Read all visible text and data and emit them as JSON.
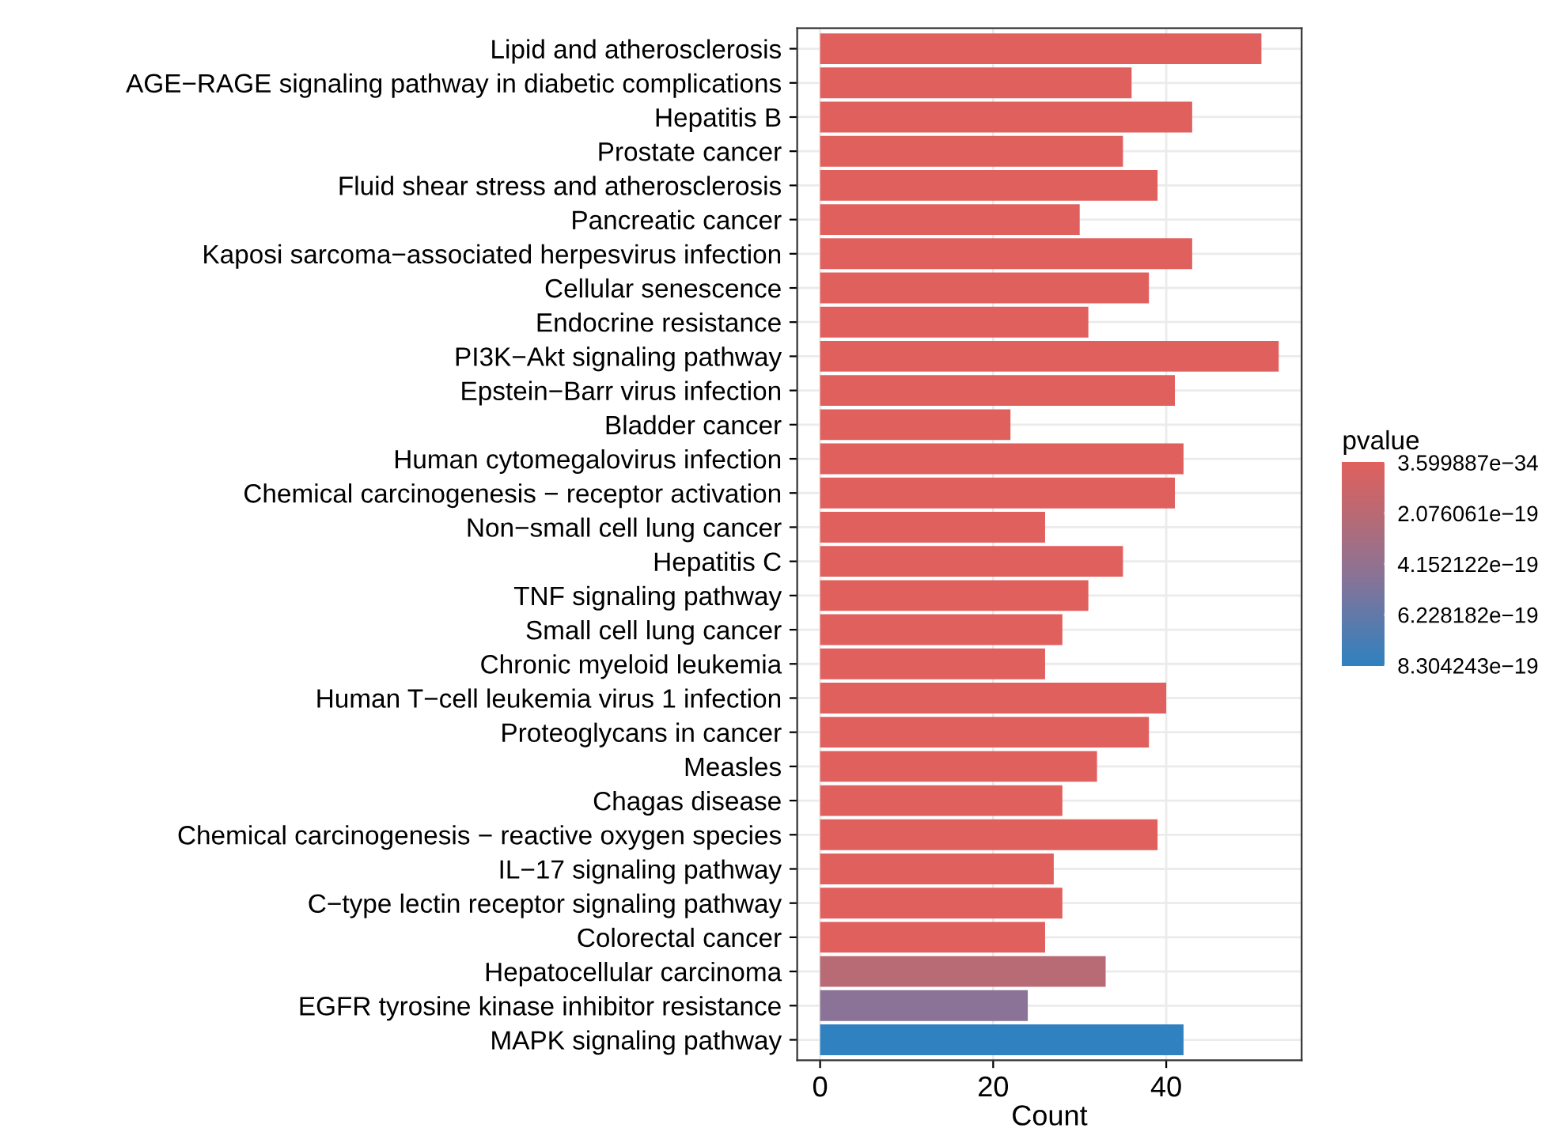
{
  "chart_data": {
    "type": "bar",
    "orientation": "horizontal",
    "xlabel": "Count",
    "clabel": "pvalue",
    "categories": [
      "Lipid and atherosclerosis",
      "AGE−RAGE signaling pathway in diabetic complications",
      "Hepatitis B",
      "Prostate cancer",
      "Fluid shear stress and atherosclerosis",
      "Pancreatic cancer",
      "Kaposi sarcoma−associated herpesvirus infection",
      "Cellular senescence",
      "Endocrine resistance",
      "PI3K−Akt signaling pathway",
      "Epstein−Barr virus infection",
      "Bladder cancer",
      "Human cytomegalovirus infection",
      "Chemical carcinogenesis − receptor activation",
      "Non−small cell lung cancer",
      "Hepatitis C",
      "TNF signaling pathway",
      "Small cell lung cancer",
      "Chronic myeloid leukemia",
      "Human T−cell leukemia virus 1 infection",
      "Proteoglycans in cancer",
      "Measles",
      "Chagas disease",
      "Chemical carcinogenesis − reactive oxygen species",
      "IL−17 signaling pathway",
      "C−type lectin receptor signaling pathway",
      "Colorectal cancer",
      "Hepatocellular carcinoma",
      "EGFR tyrosine kinase inhibitor resistance",
      "MAPK signaling pathway"
    ],
    "values": [
      51,
      36,
      43,
      35,
      39,
      30,
      43,
      38,
      31,
      53,
      41,
      22,
      42,
      41,
      26,
      35,
      31,
      28,
      26,
      40,
      38,
      32,
      28,
      39,
      27,
      28,
      26,
      33,
      24,
      42
    ],
    "cvalues": [
      0,
      0,
      0,
      0,
      0,
      0,
      0,
      0,
      0,
      0,
      0,
      0,
      0,
      0,
      0,
      0,
      0,
      0,
      0,
      0,
      0,
      0,
      0,
      0,
      0,
      0,
      0,
      2.2e-19,
      4.6e-19,
      8.304243e-19
    ],
    "colors": [
      "#e0605e",
      "#e0605e",
      "#e0605e",
      "#e0605e",
      "#e0605e",
      "#e0605e",
      "#e0605e",
      "#e0605e",
      "#e0605e",
      "#e0605e",
      "#e0605e",
      "#e0605e",
      "#e0605e",
      "#e0605e",
      "#e0605e",
      "#e0605e",
      "#e0605e",
      "#e0605e",
      "#e0605e",
      "#e0605e",
      "#e0605e",
      "#e0605e",
      "#e0605e",
      "#e0605e",
      "#e0605e",
      "#e0605e",
      "#e0605e",
      "#b86a75",
      "#8a7396",
      "#3081c0"
    ],
    "clim": [
      3.599887e-34,
      8.304243e-19
    ],
    "cticks": [
      {
        "value": 3.599887e-34,
        "label": "3.599887e−34"
      },
      {
        "value": 2.076061e-19,
        "label": "2.076061e−19"
      },
      {
        "value": 4.152122e-19,
        "label": "4.152122e−19"
      },
      {
        "value": 6.228182e-19,
        "label": "6.228182e−19"
      },
      {
        "value": 8.304243e-19,
        "label": "8.304243e−19"
      }
    ],
    "xlim": [
      -2.65,
      55.65
    ],
    "xticks": [
      0,
      20,
      40
    ],
    "grid": true
  }
}
